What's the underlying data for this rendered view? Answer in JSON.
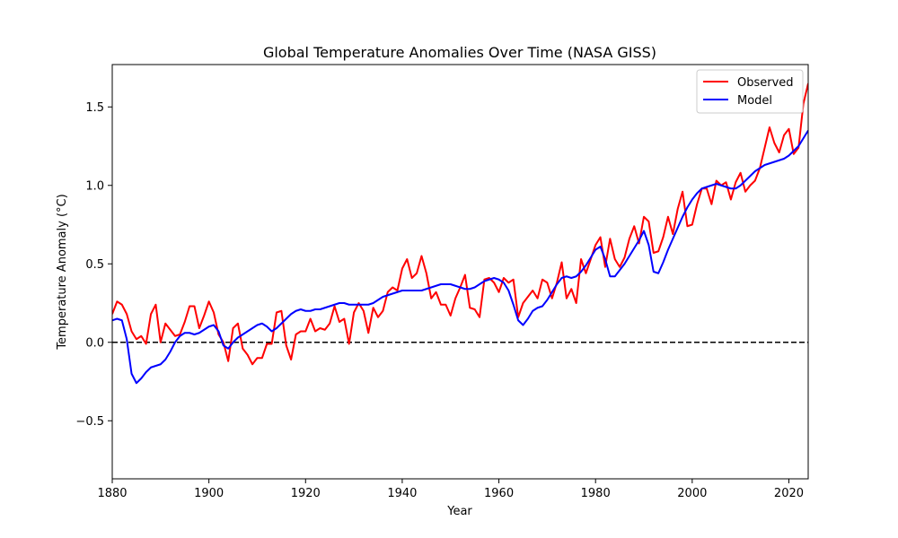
{
  "chart_data": {
    "type": "line",
    "title": "Global Temperature Anomalies Over Time (NASA GISS)",
    "xlabel": "Year",
    "ylabel": "Temperature Anomaly (°C)",
    "xlim": [
      1880,
      2024
    ],
    "ylim": [
      -0.87,
      1.77
    ],
    "x_ticks": [
      1880,
      1900,
      1920,
      1940,
      1960,
      1980,
      2000,
      2020
    ],
    "x_tick_labels": [
      "1880",
      "1900",
      "1920",
      "1940",
      "1960",
      "1980",
      "2000",
      "2020"
    ],
    "y_ticks": [
      -0.5,
      0.0,
      0.5,
      1.0,
      1.5
    ],
    "y_tick_labels": [
      "−0.5",
      "0.0",
      "0.5",
      "1.0",
      "1.5"
    ],
    "grid": false,
    "legend_position": "top-right",
    "reference_line": {
      "y": 0,
      "style": "dashed",
      "color": "#000000"
    },
    "series": [
      {
        "name": "Observed",
        "color": "#ff0000",
        "x": [
          1880,
          1881,
          1882,
          1883,
          1884,
          1885,
          1886,
          1887,
          1888,
          1889,
          1890,
          1891,
          1892,
          1893,
          1894,
          1895,
          1896,
          1897,
          1898,
          1899,
          1900,
          1901,
          1902,
          1903,
          1904,
          1905,
          1906,
          1907,
          1908,
          1909,
          1910,
          1911,
          1912,
          1913,
          1914,
          1915,
          1916,
          1917,
          1918,
          1919,
          1920,
          1921,
          1922,
          1923,
          1924,
          1925,
          1926,
          1927,
          1928,
          1929,
          1930,
          1931,
          1932,
          1933,
          1934,
          1935,
          1936,
          1937,
          1938,
          1939,
          1940,
          1941,
          1942,
          1943,
          1944,
          1945,
          1946,
          1947,
          1948,
          1949,
          1950,
          1951,
          1952,
          1953,
          1954,
          1955,
          1956,
          1957,
          1958,
          1959,
          1960,
          1961,
          1962,
          1963,
          1964,
          1965,
          1966,
          1967,
          1968,
          1969,
          1970,
          1971,
          1972,
          1973,
          1974,
          1975,
          1976,
          1977,
          1978,
          1979,
          1980,
          1981,
          1982,
          1983,
          1984,
          1985,
          1986,
          1987,
          1988,
          1989,
          1990,
          1991,
          1992,
          1993,
          1994,
          1995,
          1996,
          1997,
          1998,
          1999,
          2000,
          2001,
          2002,
          2003,
          2004,
          2005,
          2006,
          2007,
          2008,
          2009,
          2010,
          2011,
          2012,
          2013,
          2014,
          2015,
          2016,
          2017,
          2018,
          2019,
          2020,
          2021,
          2022,
          2023,
          2024
        ],
        "y": [
          0.18,
          0.26,
          0.24,
          0.18,
          0.07,
          0.02,
          0.04,
          -0.01,
          0.18,
          0.24,
          0.0,
          0.12,
          0.08,
          0.04,
          0.05,
          0.13,
          0.23,
          0.23,
          0.09,
          0.17,
          0.26,
          0.19,
          0.05,
          0.0,
          -0.12,
          0.09,
          0.12,
          -0.04,
          -0.08,
          -0.14,
          -0.1,
          -0.1,
          -0.01,
          -0.01,
          0.19,
          0.2,
          -0.02,
          -0.11,
          0.05,
          0.07,
          0.07,
          0.15,
          0.07,
          0.09,
          0.08,
          0.12,
          0.23,
          0.13,
          0.15,
          -0.01,
          0.19,
          0.25,
          0.2,
          0.06,
          0.22,
          0.16,
          0.2,
          0.32,
          0.35,
          0.33,
          0.47,
          0.53,
          0.41,
          0.44,
          0.55,
          0.44,
          0.28,
          0.32,
          0.24,
          0.24,
          0.17,
          0.28,
          0.35,
          0.43,
          0.22,
          0.21,
          0.16,
          0.4,
          0.41,
          0.38,
          0.32,
          0.41,
          0.38,
          0.4,
          0.16,
          0.25,
          0.29,
          0.33,
          0.28,
          0.4,
          0.38,
          0.28,
          0.38,
          0.51,
          0.28,
          0.34,
          0.25,
          0.53,
          0.44,
          0.53,
          0.62,
          0.67,
          0.48,
          0.66,
          0.53,
          0.48,
          0.54,
          0.66,
          0.74,
          0.63,
          0.8,
          0.77,
          0.57,
          0.58,
          0.67,
          0.8,
          0.69,
          0.85,
          0.96,
          0.74,
          0.75,
          0.88,
          0.98,
          0.98,
          0.88,
          1.03,
          1.0,
          1.02,
          0.91,
          1.02,
          1.08,
          0.96,
          1.0,
          1.03,
          1.11,
          1.24,
          1.37,
          1.27,
          1.21,
          1.32,
          1.36,
          1.2,
          1.24,
          1.52,
          1.65
        ]
      },
      {
        "name": "Model",
        "color": "#0000ff",
        "x": [
          1880,
          1881,
          1882,
          1883,
          1884,
          1885,
          1886,
          1887,
          1888,
          1889,
          1890,
          1891,
          1892,
          1893,
          1894,
          1895,
          1896,
          1897,
          1898,
          1899,
          1900,
          1901,
          1902,
          1903,
          1904,
          1905,
          1906,
          1907,
          1908,
          1909,
          1910,
          1911,
          1912,
          1913,
          1914,
          1915,
          1916,
          1917,
          1918,
          1919,
          1920,
          1921,
          1922,
          1923,
          1924,
          1925,
          1926,
          1927,
          1928,
          1929,
          1930,
          1931,
          1932,
          1933,
          1934,
          1935,
          1936,
          1937,
          1938,
          1939,
          1940,
          1941,
          1942,
          1943,
          1944,
          1945,
          1946,
          1947,
          1948,
          1949,
          1950,
          1951,
          1952,
          1953,
          1954,
          1955,
          1956,
          1957,
          1958,
          1959,
          1960,
          1961,
          1962,
          1963,
          1964,
          1965,
          1966,
          1967,
          1968,
          1969,
          1970,
          1971,
          1972,
          1973,
          1974,
          1975,
          1976,
          1977,
          1978,
          1979,
          1980,
          1981,
          1982,
          1983,
          1984,
          1985,
          1986,
          1987,
          1988,
          1989,
          1990,
          1991,
          1992,
          1993,
          1994,
          1995,
          1996,
          1997,
          1998,
          1999,
          2000,
          2001,
          2002,
          2003,
          2004,
          2005,
          2006,
          2007,
          2008,
          2009,
          2010,
          2011,
          2012,
          2013,
          2014,
          2015,
          2016,
          2017,
          2018,
          2019,
          2020,
          2021,
          2022,
          2023,
          2024
        ],
        "y": [
          0.14,
          0.15,
          0.14,
          0.02,
          -0.2,
          -0.26,
          -0.23,
          -0.19,
          -0.16,
          -0.15,
          -0.14,
          -0.11,
          -0.06,
          0.0,
          0.04,
          0.06,
          0.06,
          0.05,
          0.06,
          0.08,
          0.1,
          0.11,
          0.07,
          -0.02,
          -0.04,
          0.0,
          0.03,
          0.05,
          0.07,
          0.09,
          0.11,
          0.12,
          0.1,
          0.07,
          0.09,
          0.12,
          0.15,
          0.18,
          0.2,
          0.21,
          0.2,
          0.2,
          0.21,
          0.21,
          0.22,
          0.23,
          0.24,
          0.25,
          0.25,
          0.24,
          0.24,
          0.24,
          0.24,
          0.24,
          0.25,
          0.27,
          0.29,
          0.3,
          0.31,
          0.32,
          0.33,
          0.33,
          0.33,
          0.33,
          0.33,
          0.34,
          0.35,
          0.36,
          0.37,
          0.37,
          0.37,
          0.36,
          0.35,
          0.34,
          0.34,
          0.35,
          0.37,
          0.39,
          0.4,
          0.41,
          0.4,
          0.38,
          0.33,
          0.24,
          0.14,
          0.11,
          0.15,
          0.2,
          0.22,
          0.23,
          0.27,
          0.32,
          0.37,
          0.41,
          0.42,
          0.41,
          0.42,
          0.45,
          0.49,
          0.54,
          0.59,
          0.61,
          0.53,
          0.42,
          0.42,
          0.46,
          0.5,
          0.55,
          0.6,
          0.65,
          0.71,
          0.62,
          0.45,
          0.44,
          0.51,
          0.59,
          0.66,
          0.73,
          0.8,
          0.86,
          0.91,
          0.95,
          0.98,
          0.99,
          1.0,
          1.01,
          1.0,
          0.99,
          0.98,
          0.98,
          1.0,
          1.03,
          1.06,
          1.09,
          1.11,
          1.13,
          1.14,
          1.15,
          1.16,
          1.17,
          1.19,
          1.22,
          1.25,
          1.3,
          1.35
        ]
      }
    ]
  }
}
